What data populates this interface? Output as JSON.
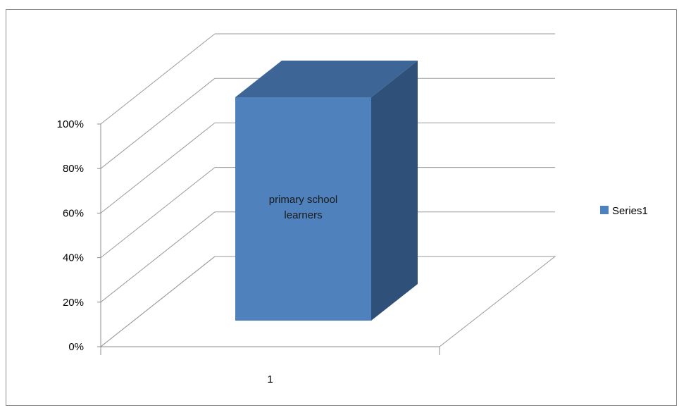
{
  "chart_data": {
    "type": "bar",
    "style": "3d-column",
    "categories": [
      "1"
    ],
    "series": [
      {
        "name": "Series1",
        "values": [
          1.0
        ],
        "data_labels": [
          "primary school\nlearners"
        ]
      }
    ],
    "ylim": [
      0,
      1
    ],
    "y_ticks": [
      0,
      0.2,
      0.4,
      0.6,
      0.8,
      1.0
    ],
    "y_tick_labels": [
      "0%",
      "20%",
      "40%",
      "60%",
      "80%",
      "100%"
    ],
    "x_tick_labels": [
      "1"
    ],
    "grid": true,
    "legend_position": "right",
    "colors": {
      "bar_front": "#4f81bd",
      "bar_top": "#3d6596",
      "bar_side": "#2f5078",
      "gridline": "#9a9a9a",
      "axis": "#8c8c8c"
    }
  }
}
